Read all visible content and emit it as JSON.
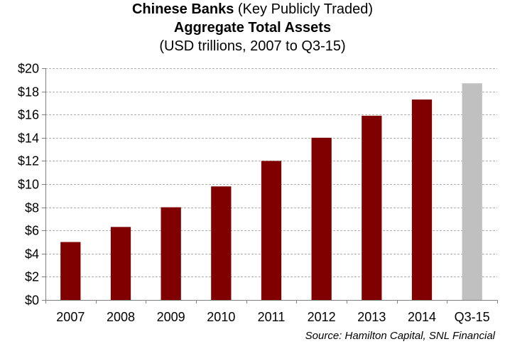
{
  "title": {
    "line1_bold": "Chinese Banks",
    "line1_rest": " (Key Publicly Traded)",
    "line2": "Aggregate Total Assets",
    "line3": "(USD trillions, 2007 to Q3-15)"
  },
  "source": "Source: Hamilton Capital, SNL Financial",
  "chart_data": {
    "type": "bar",
    "categories": [
      "2007",
      "2008",
      "2009",
      "2010",
      "2011",
      "2012",
      "2013",
      "2014",
      "Q3-15"
    ],
    "values": [
      5.0,
      6.3,
      8.0,
      9.8,
      12.0,
      14.0,
      15.9,
      17.3,
      18.7
    ],
    "ylim": [
      0,
      20
    ],
    "yticks": [
      0,
      2,
      4,
      6,
      8,
      10,
      12,
      14,
      16,
      18,
      20
    ],
    "ytick_labels": [
      "$0",
      "$2",
      "$4",
      "$6",
      "$8",
      "$10",
      "$12",
      "$14",
      "$16",
      "$18",
      "$20"
    ],
    "grid": true,
    "colors": {
      "bar": "#800000",
      "highlight_bar": "#c0c0c0",
      "highlight_categories": [
        "Q3-15"
      ],
      "grid": "#b0b0b0",
      "axis": "#808080"
    }
  }
}
